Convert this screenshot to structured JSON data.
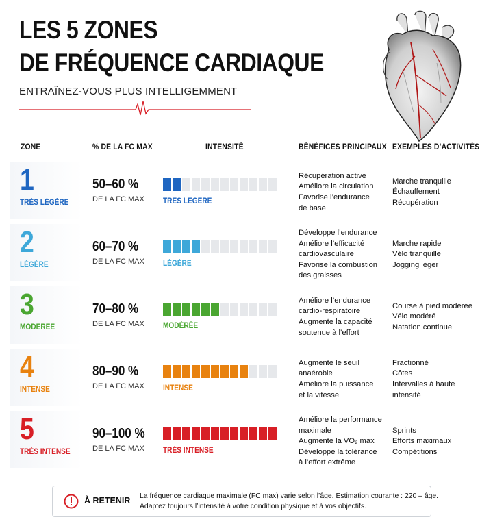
{
  "header": {
    "title_line1": "LES 5 ZONES",
    "title_line2": "DE FRÉQUENCE CARDIAQUE",
    "subtitle": "ENTRAÎNEZ-VOUS PLUS INTELLIGEMMENT"
  },
  "columns": {
    "zone": "ZONE",
    "fc": "% DE LA FC MAX",
    "intensity": "INTENSITÉ",
    "benefits": "BÉNÉFICES PRINCIPAUX",
    "examples": "EXEMPLES D’ACTIVITÉS"
  },
  "zones": [
    {
      "number": "1",
      "label": "TRÈS LÉGÈRE",
      "color": "#1f66c1",
      "pct": "50–60 %",
      "pct_sub": "DE LA FC MAX",
      "intensity_label": "TRÈS LÉGÈRE",
      "intensity_filled": 2,
      "intensity_total": 12,
      "benefits": [
        "Récupération active",
        "Améliore la circulation",
        "Favorise l’endurance",
        "de base"
      ],
      "examples": [
        "Marche tranquille",
        "Échauffement",
        "Récupération"
      ]
    },
    {
      "number": "2",
      "label": "LÉGÈRE",
      "color": "#3ea8d9",
      "pct": "60–70 %",
      "pct_sub": "DE LA FC MAX",
      "intensity_label": "LÉGÈRE",
      "intensity_filled": 4,
      "intensity_total": 12,
      "benefits": [
        "Développe l’endurance",
        "Améliore l’efficacité",
        "cardiovasculaire",
        "Favorise la combustion",
        "des graisses"
      ],
      "examples": [
        "Marche rapide",
        "Vélo tranquille",
        "Jogging léger"
      ]
    },
    {
      "number": "3",
      "label": "MODÉRÉE",
      "color": "#4aa631",
      "pct": "70–80 %",
      "pct_sub": "DE LA FC MAX",
      "intensity_label": "MODÉRÉE",
      "intensity_filled": 6,
      "intensity_total": 12,
      "benefits": [
        "Améliore l’endurance",
        "cardio-respiratoire",
        "Augmente la capacité",
        "soutenue à l’effort"
      ],
      "examples": [
        "Course à pied modérée",
        "Vélo modéré",
        "Natation continue"
      ]
    },
    {
      "number": "4",
      "label": "INTENSE",
      "color": "#e8820f",
      "pct": "80–90 %",
      "pct_sub": "DE LA FC MAX",
      "intensity_label": "INTENSE",
      "intensity_filled": 9,
      "intensity_total": 12,
      "benefits": [
        "Augmente le seuil",
        "anaérobie",
        "Améliore la puissance",
        "et la vitesse"
      ],
      "examples": [
        "Fractionné",
        "Côtes",
        "Intervalles à haute",
        "intensité"
      ]
    },
    {
      "number": "5",
      "label": "TRÈS INTENSE",
      "color": "#d81f26",
      "pct": "90–100 %",
      "pct_sub": "DE LA FC MAX",
      "intensity_label": "TRÈS INTENSE",
      "intensity_filled": 12,
      "intensity_total": 12,
      "benefits": [
        "Améliore la performance",
        "maximale",
        "Augmente la VO₂ max",
        "Développe la tolérance",
        "à l’effort extrême"
      ],
      "examples": [
        "Sprints",
        "Efforts maximaux",
        "Compétitions"
      ]
    }
  ],
  "footer": {
    "label": "À RETENIR",
    "line1": "La fréquence cardiaque maximale (FC max) varie selon l’âge. Estimation courante : 220 – âge.",
    "line2": "Adaptez toujours l’intensité à votre condition physique et à vos objectifs."
  },
  "colors": {
    "accent_red": "#d81f26",
    "empty_segment": "#e6e8eb"
  },
  "icons": {
    "heart": "anatomical-heart-illustration",
    "pulse": "heartbeat-line-icon",
    "warning": "exclamation-circle-icon"
  }
}
